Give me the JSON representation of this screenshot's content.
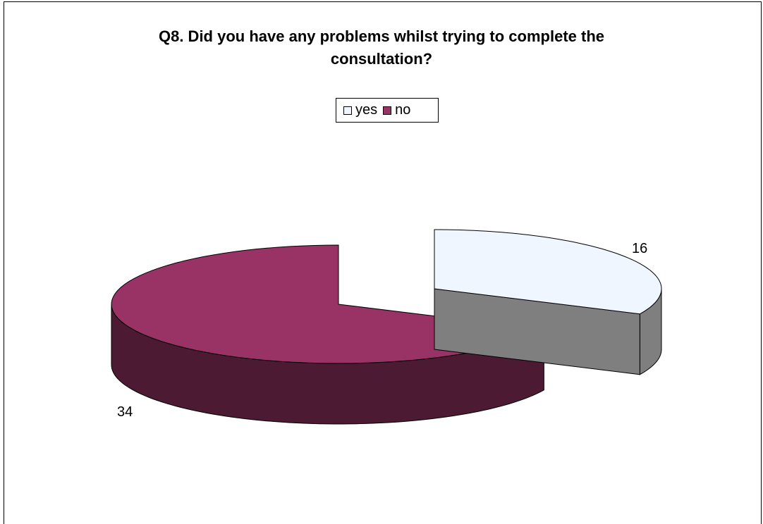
{
  "chart_data": {
    "type": "pie",
    "title": "Q8. Did you have any problems whilst trying to complete the consultation?",
    "title_lines": [
      "Q8. Did you have any problems whilst trying to complete the",
      "consultation?"
    ],
    "categories": [
      "yes",
      "no"
    ],
    "values": [
      16,
      34
    ],
    "data_labels": [
      "16",
      "34"
    ],
    "colors": {
      "yes_top": "#f0f6ff",
      "yes_side": "#7f7f7f",
      "no_top": "#993366",
      "no_side": "#4c1a33"
    },
    "legend_position": "top",
    "style": "3d-exploded"
  }
}
